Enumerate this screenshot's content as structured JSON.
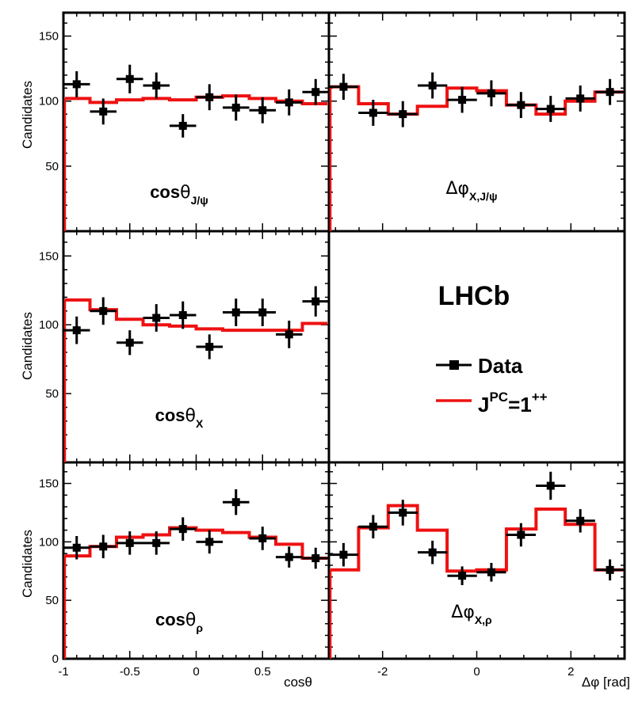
{
  "chart_data": [
    {
      "id": "cos_theta_jpsi",
      "type": "line",
      "label": {
        "prefix": "cos",
        "greek": "θ",
        "sub": "J/ψ"
      },
      "ylabel": "Candidates",
      "xlim": [
        -1,
        1
      ],
      "ylim": [
        0,
        168
      ],
      "yticks": [
        50,
        100,
        150
      ],
      "data_x": [
        -0.9,
        -0.7,
        -0.5,
        -0.3,
        -0.1,
        0.1,
        0.3,
        0.5,
        0.7,
        0.9
      ],
      "data_y": [
        113,
        92,
        117,
        112,
        81,
        103,
        95,
        93,
        99,
        107
      ],
      "data_err": [
        10,
        10,
        11,
        10,
        9,
        10,
        10,
        10,
        10,
        10
      ],
      "model_edges": [
        -1,
        -0.8,
        -0.6,
        -0.4,
        -0.2,
        0,
        0.2,
        0.4,
        0.6,
        0.8,
        1
      ],
      "model_values": [
        102,
        99,
        101,
        102,
        101,
        103,
        104,
        102,
        100,
        98
      ]
    },
    {
      "id": "dphi_x_jpsi",
      "type": "line",
      "label": {
        "prefix": "",
        "greek": "Δφ",
        "sub": "X,J/ψ"
      },
      "ylabel": "",
      "xlim": [
        -3.14,
        3.14
      ],
      "ylim": [
        0,
        168
      ],
      "yticks": [
        50,
        100,
        150
      ],
      "data_x": [
        -2.83,
        -2.2,
        -1.57,
        -0.94,
        -0.31,
        0.31,
        0.94,
        1.57,
        2.2,
        2.83
      ],
      "data_y": [
        111,
        91,
        90,
        112,
        101,
        106,
        97,
        94,
        102,
        107
      ],
      "data_err": [
        10,
        10,
        10,
        10,
        10,
        10,
        10,
        10,
        10,
        10
      ],
      "model_edges": [
        -3.14,
        -2.51,
        -1.88,
        -1.26,
        -0.63,
        0,
        0.63,
        1.26,
        1.88,
        2.51,
        3.14
      ],
      "model_values": [
        111,
        98,
        90,
        96,
        110,
        108,
        97,
        90,
        100,
        107
      ]
    },
    {
      "id": "cos_theta_x",
      "type": "line",
      "label": {
        "prefix": "cos",
        "greek": "θ",
        "sub": "X"
      },
      "ylabel": "Candidates",
      "xlim": [
        -1,
        1
      ],
      "ylim": [
        0,
        168
      ],
      "yticks": [
        50,
        100,
        150
      ],
      "data_x": [
        -0.9,
        -0.7,
        -0.5,
        -0.3,
        -0.1,
        0.1,
        0.3,
        0.5,
        0.7,
        0.9
      ],
      "data_y": [
        96,
        110,
        87,
        105,
        107,
        84,
        109,
        109,
        93,
        117
      ],
      "data_err": [
        10,
        10,
        9,
        10,
        10,
        9,
        10,
        10,
        10,
        11
      ],
      "model_edges": [
        -1,
        -0.8,
        -0.6,
        -0.4,
        -0.2,
        0,
        0.2,
        0.4,
        0.6,
        0.8,
        1
      ],
      "model_values": [
        118,
        111,
        104,
        100,
        99,
        97,
        96,
        96,
        96,
        101
      ]
    },
    {
      "id": "cos_theta_rho",
      "type": "line",
      "label": {
        "prefix": "cos",
        "greek": "θ",
        "sub": "ρ"
      },
      "ylabel": "Candidates",
      "xlim": [
        -1,
        1
      ],
      "ylim": [
        0,
        168
      ],
      "yticks": [
        0,
        50,
        100,
        150
      ],
      "data_x": [
        -0.9,
        -0.7,
        -0.5,
        -0.3,
        -0.1,
        0.1,
        0.3,
        0.5,
        0.7,
        0.9
      ],
      "data_y": [
        95,
        96,
        99,
        99,
        111,
        100,
        134,
        103,
        87,
        86
      ],
      "data_err": [
        10,
        10,
        10,
        10,
        10,
        10,
        11,
        10,
        9,
        9
      ],
      "model_edges": [
        -1,
        -0.8,
        -0.6,
        -0.4,
        -0.2,
        0,
        0.2,
        0.4,
        0.6,
        0.8,
        1
      ],
      "model_values": [
        88,
        96,
        104,
        106,
        112,
        110,
        108,
        104,
        98,
        86
      ]
    },
    {
      "id": "dphi_x_rho",
      "type": "line",
      "label": {
        "prefix": "",
        "greek": "Δφ",
        "sub": "X,ρ"
      },
      "ylabel": "",
      "xlim": [
        -3.14,
        3.14
      ],
      "ylim": [
        0,
        168
      ],
      "yticks": [
        0,
        50,
        100,
        150
      ],
      "data_x": [
        -2.83,
        -2.2,
        -1.57,
        -0.94,
        -0.31,
        0.31,
        0.94,
        1.57,
        2.2,
        2.83
      ],
      "data_y": [
        89,
        113,
        125,
        91,
        71,
        74,
        106,
        148,
        118,
        76
      ],
      "data_err": [
        10,
        10,
        11,
        10,
        8,
        8,
        10,
        12,
        10,
        9
      ],
      "model_edges": [
        -3.14,
        -2.51,
        -1.88,
        -1.26,
        -0.63,
        0,
        0.63,
        1.26,
        1.88,
        2.51,
        3.14
      ],
      "model_values": [
        76,
        112,
        131,
        110,
        75,
        76,
        111,
        128,
        115,
        76
      ]
    }
  ],
  "axes": {
    "x_left_ticks": [
      "-1",
      "-0.5",
      "0",
      "0.5"
    ],
    "x_left_tick_values": [
      -1,
      -0.5,
      0,
      0.5
    ],
    "x_left_title": "cosθ",
    "x_right_ticks": [
      "-2",
      "0",
      "2"
    ],
    "x_right_tick_values": [
      -2,
      0,
      2
    ],
    "x_right_title": "Δφ [rad]",
    "y_title": "Candidates"
  },
  "legend": {
    "experiment": "LHCb",
    "data_label": "Data",
    "model_label_base": "J",
    "model_label_sup": "PC",
    "model_label_rest": "=1",
    "model_label_sup2": "++"
  },
  "colors": {
    "data": "#000000",
    "model": "#ee1111",
    "frame": "#000000"
  }
}
